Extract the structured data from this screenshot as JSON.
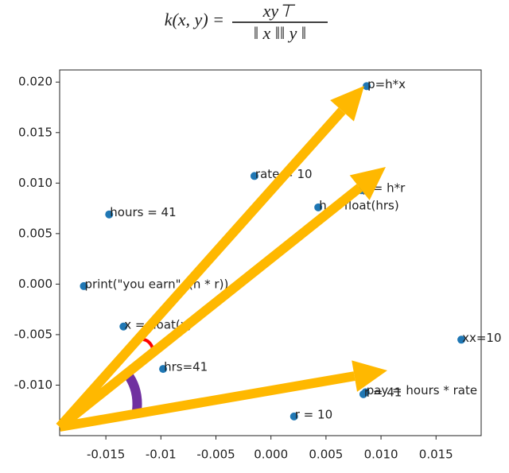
{
  "formula": {
    "lhs": "k(x, y) =",
    "numerator": "xy⊤",
    "denominator": "‖ x ‖‖ y ‖"
  },
  "chart_data": {
    "type": "scatter",
    "color": "#1f77b4",
    "x": [
      0.0087,
      -0.0015,
      0.0082,
      0.0043,
      -0.0147,
      -0.017,
      -0.0134,
      0.0173,
      -0.0098,
      0.0086,
      0.0084,
      0.0021
    ],
    "y": [
      0.0196,
      0.0107,
      0.0093,
      0.0076,
      0.0069,
      -0.0002,
      -0.0042,
      -0.0055,
      -0.0084,
      -0.0107,
      -0.0109,
      -0.0131
    ],
    "labels": [
      "p=h*x",
      "rate = 10",
      "y = h*r",
      "h = float(hrs)",
      "hours = 41",
      "print(\"you earn\", (h * r))",
      "x = float(x)",
      "xx=10",
      "hrs=41",
      "pay = hours * rate",
      "r = 41",
      "r = 10"
    ],
    "xlim": [
      -0.0192,
      0.0191
    ],
    "ylim": [
      -0.015,
      0.0212
    ],
    "xticks": [
      -0.015,
      -0.01,
      -0.005,
      {
        "value": 0,
        "label": "0.000"
      },
      0.005,
      {
        "value": 0.01,
        "label": "0.010"
      },
      0.015
    ],
    "yticks": [
      {
        "value": -0.01,
        "label": "-0.010"
      },
      -0.005,
      {
        "value": 0,
        "label": "0.000"
      },
      0.005,
      {
        "value": 0.01,
        "label": "0.010"
      },
      0.015,
      {
        "value": 0.02,
        "label": "0.020"
      }
    ]
  }
}
